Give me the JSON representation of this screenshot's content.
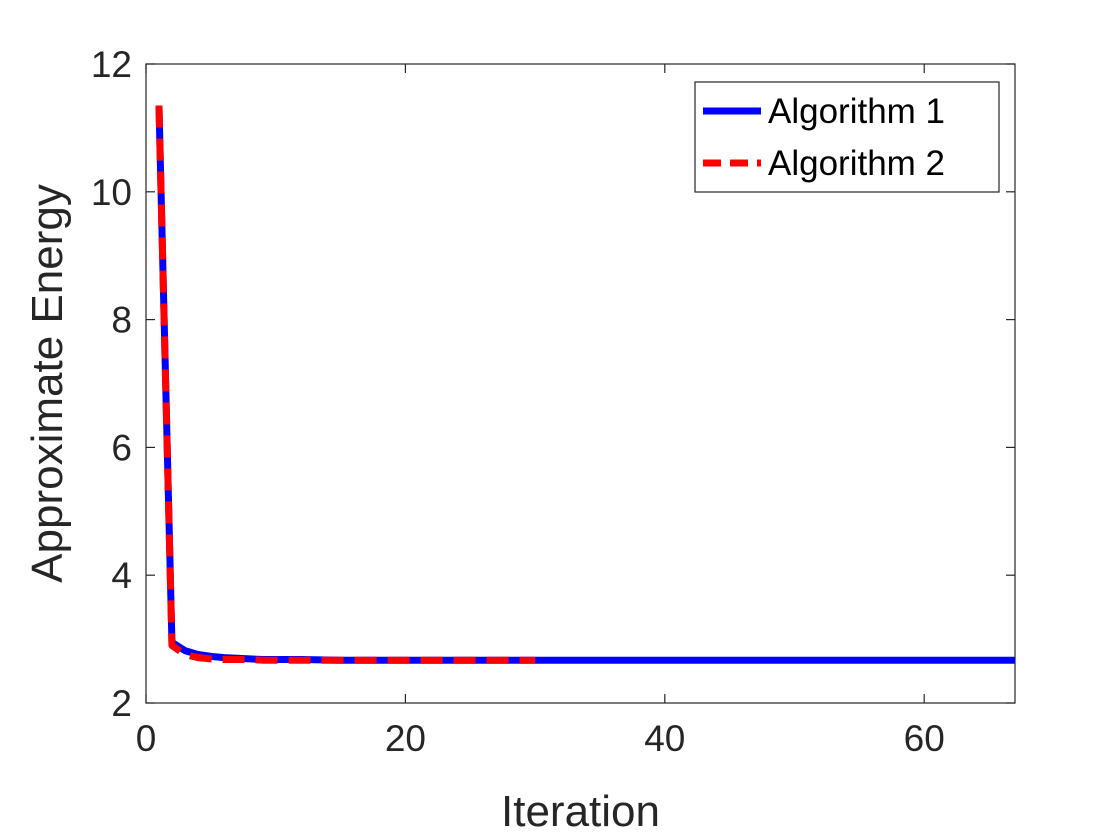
{
  "chart_data": {
    "type": "line",
    "title": "",
    "xlabel": "Iteration",
    "ylabel": "Approximate Energy",
    "xlim": [
      0,
      67
    ],
    "ylim": [
      2,
      12
    ],
    "xticks": [
      0,
      20,
      40,
      60
    ],
    "yticks": [
      2,
      4,
      6,
      8,
      10,
      12
    ],
    "grid": false,
    "box": true,
    "legend_position": "top-right",
    "series": [
      {
        "name": "Algorithm 1",
        "color": "#0000ff",
        "style": "solid",
        "x": [
          1,
          2,
          3,
          4,
          5,
          6,
          7,
          8,
          9,
          10,
          12,
          15,
          20,
          25,
          30,
          40,
          50,
          60,
          67
        ],
        "y": [
          11.35,
          2.95,
          2.82,
          2.76,
          2.73,
          2.71,
          2.7,
          2.69,
          2.68,
          2.68,
          2.68,
          2.67,
          2.67,
          2.67,
          2.67,
          2.67,
          2.67,
          2.67,
          2.67
        ]
      },
      {
        "name": "Algorithm 2",
        "color": "#ff0000",
        "style": "dashed",
        "x": [
          1,
          2,
          3,
          4,
          5,
          6,
          7,
          8,
          9,
          10,
          12,
          15,
          20,
          25,
          30
        ],
        "y": [
          11.35,
          2.9,
          2.76,
          2.71,
          2.69,
          2.68,
          2.68,
          2.68,
          2.67,
          2.67,
          2.67,
          2.67,
          2.67,
          2.67,
          2.67
        ]
      }
    ]
  }
}
